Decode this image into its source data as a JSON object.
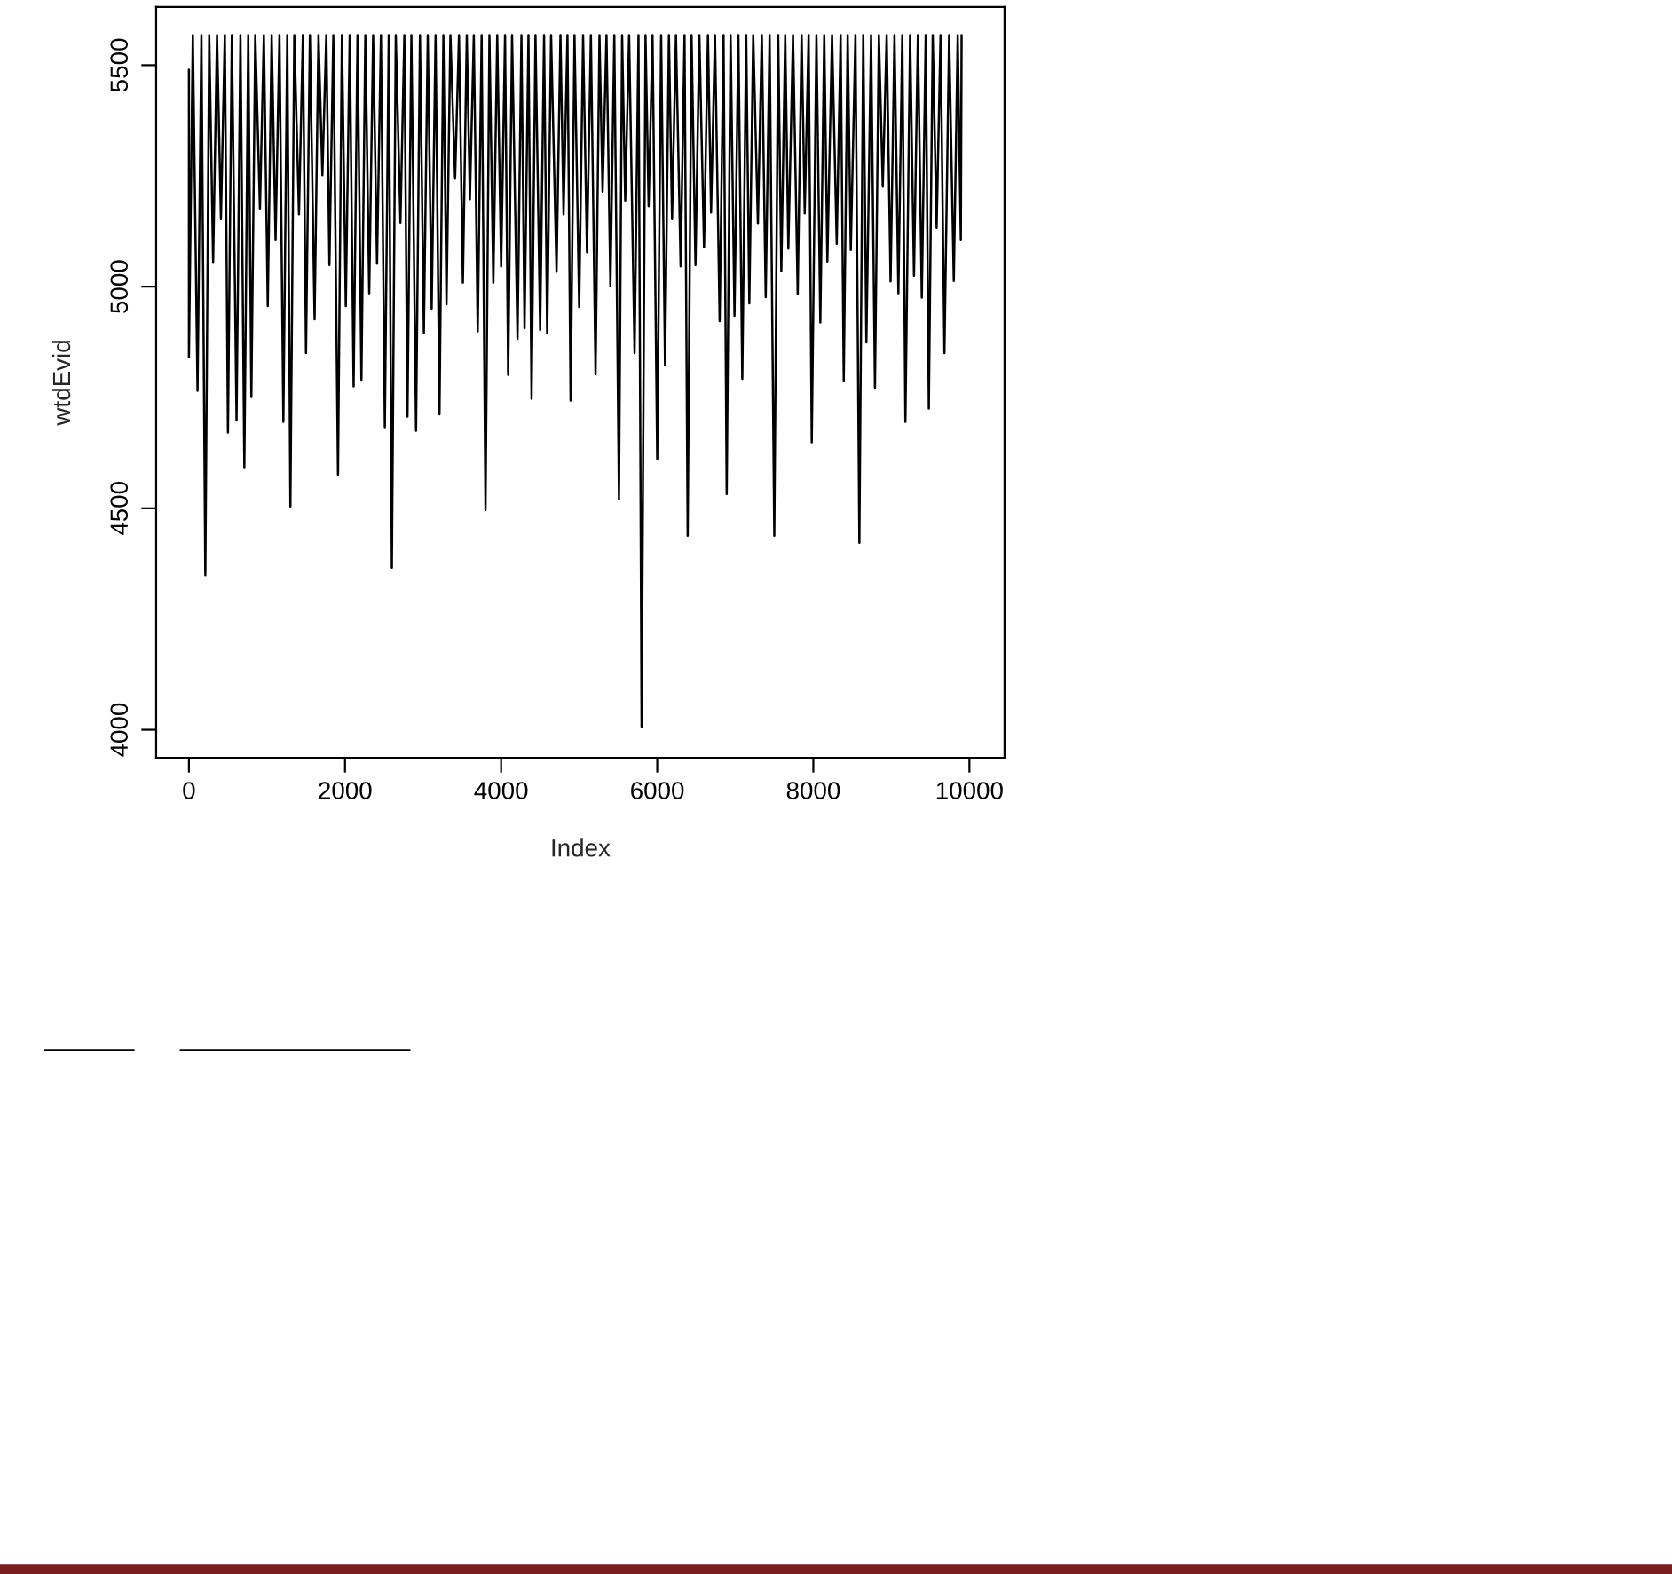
{
  "chart_data": {
    "type": "line",
    "xlabel": "Index",
    "ylabel": "wtdEvid",
    "xlim": [
      -420,
      10450
    ],
    "ylim": [
      3937,
      5631
    ],
    "xticks": [
      0,
      2000,
      4000,
      6000,
      8000,
      10000
    ],
    "yticks": [
      4000,
      4500,
      5000,
      5500
    ],
    "grid": false,
    "legend": false,
    "line_style": "solid",
    "marker": "none",
    "series": [
      {
        "color": "#000000",
        "x": [
          0,
          0,
          50,
          110,
          160,
          210,
          260,
          310,
          360,
          410,
          460,
          500,
          550,
          610,
          660,
          710,
          760,
          800,
          850,
          910,
          960,
          1010,
          1060,
          1110,
          1160,
          1210,
          1260,
          1300,
          1350,
          1410,
          1460,
          1500,
          1550,
          1610,
          1660,
          1710,
          1760,
          1800,
          1850,
          1910,
          1960,
          2010,
          2060,
          2110,
          2160,
          2210,
          2260,
          2310,
          2360,
          2410,
          2460,
          2510,
          2560,
          2600,
          2650,
          2710,
          2760,
          2800,
          2850,
          2910,
          2960,
          3010,
          3060,
          3110,
          3160,
          3210,
          3260,
          3300,
          3350,
          3410,
          3460,
          3510,
          3560,
          3600,
          3650,
          3700,
          3750,
          3800,
          3850,
          3900,
          3950,
          4000,
          4050,
          4090,
          4140,
          4210,
          4260,
          4300,
          4350,
          4390,
          4440,
          4500,
          4550,
          4590,
          4640,
          4710,
          4760,
          4800,
          4850,
          4890,
          4940,
          5000,
          5050,
          5100,
          5150,
          5210,
          5260,
          5300,
          5350,
          5400,
          5450,
          5510,
          5550,
          5590,
          5640,
          5710,
          5760,
          5800,
          5850,
          5890,
          5940,
          6000,
          6050,
          6100,
          6150,
          6190,
          6240,
          6300,
          6350,
          6390,
          6440,
          6490,
          6540,
          6600,
          6650,
          6690,
          6740,
          6800,
          6850,
          6890,
          6940,
          6990,
          7040,
          7090,
          7140,
          7180,
          7230,
          7290,
          7340,
          7390,
          7440,
          7500,
          7550,
          7590,
          7640,
          7680,
          7740,
          7800,
          7850,
          7890,
          7940,
          7980,
          8040,
          8090,
          8140,
          8180,
          8240,
          8300,
          8350,
          8390,
          8440,
          8480,
          8540,
          8590,
          8640,
          8680,
          8740,
          8790,
          8840,
          8890,
          8940,
          8990,
          9040,
          9090,
          9140,
          9180,
          9240,
          9290,
          9340,
          9390,
          9440,
          9480,
          9530,
          9580,
          9630,
          9680,
          9740,
          9800,
          9850,
          9890,
          9900
        ],
        "values": [
          5490,
          4841,
          5568,
          4765,
          5568,
          4349,
          5568,
          5056,
          5568,
          5153,
          5568,
          4671,
          5568,
          4698,
          5568,
          4591,
          5568,
          4751,
          5568,
          5175,
          5568,
          4956,
          5568,
          5105,
          5568,
          4695,
          5568,
          4504,
          5568,
          5164,
          5568,
          4850,
          5568,
          4926,
          5568,
          5252,
          5568,
          5049,
          5568,
          4576,
          5568,
          4956,
          5568,
          4775,
          5568,
          4790,
          5568,
          4985,
          5568,
          5052,
          5568,
          4683,
          5568,
          4366,
          5568,
          5145,
          5568,
          4707,
          5568,
          4675,
          5568,
          4895,
          5568,
          4950,
          5568,
          4712,
          5568,
          4960,
          5568,
          5244,
          5568,
          5009,
          5568,
          5198,
          5568,
          4899,
          5568,
          4496,
          5568,
          5009,
          5568,
          5046,
          5568,
          4801,
          5568,
          4882,
          5568,
          4906,
          5568,
          4747,
          5568,
          4902,
          5568,
          4894,
          5568,
          5034,
          5568,
          5164,
          5568,
          4743,
          5568,
          4954,
          5568,
          5078,
          5568,
          4802,
          5568,
          5215,
          5568,
          5001,
          5568,
          4520,
          5568,
          5193,
          5568,
          4850,
          5568,
          4007,
          5568,
          5182,
          5568,
          4611,
          5568,
          4822,
          5568,
          5153,
          5568,
          5046,
          5568,
          4438,
          5568,
          5049,
          5568,
          5089,
          5568,
          5168,
          5568,
          4922,
          5568,
          4532,
          5568,
          4934,
          5568,
          4792,
          5568,
          4962,
          5568,
          5142,
          5568,
          4976,
          5568,
          4438,
          5568,
          5035,
          5568,
          5086,
          5568,
          4983,
          5568,
          5166,
          5568,
          4649,
          5568,
          4919,
          5568,
          5057,
          5568,
          5097,
          5568,
          4788,
          5568,
          5083,
          5568,
          4422,
          5568,
          4874,
          5568,
          4772,
          5568,
          5226,
          5568,
          5012,
          5568,
          4985,
          5568,
          4695,
          5568,
          5025,
          5568,
          4975,
          5568,
          4725,
          5568,
          5133,
          5568,
          4850,
          5568,
          5013,
          5568,
          5105,
          5568
        ]
      }
    ]
  }
}
